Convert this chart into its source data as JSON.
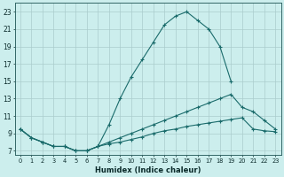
{
  "xlabel": "Humidex (Indice chaleur)",
  "bg_color": "#cceeed",
  "grid_color": "#aacccc",
  "line_color": "#1a6b6b",
  "xlim": [
    -0.5,
    23.5
  ],
  "ylim": [
    6.5,
    24.0
  ],
  "xticks": [
    0,
    1,
    2,
    3,
    4,
    5,
    6,
    7,
    8,
    9,
    10,
    11,
    12,
    13,
    14,
    15,
    16,
    17,
    18,
    19,
    20,
    21,
    22,
    23
  ],
  "yticks": [
    7,
    9,
    11,
    13,
    15,
    17,
    19,
    21,
    23
  ],
  "line1_x": [
    0,
    1,
    2,
    3,
    4,
    5,
    6,
    7,
    8,
    9,
    10,
    11,
    12,
    13,
    14,
    15,
    16,
    17,
    18,
    19
  ],
  "line1_y": [
    9.5,
    8.5,
    8.0,
    7.5,
    7.5,
    7.0,
    7.0,
    7.5,
    10.0,
    13.0,
    15.5,
    17.5,
    19.5,
    21.5,
    22.5,
    23.0,
    22.0,
    21.0,
    19.0,
    15.0
  ],
  "line2_x": [
    0,
    1,
    2,
    3,
    4,
    5,
    6,
    7,
    8,
    9,
    10,
    11,
    12,
    13,
    14,
    15,
    16,
    17,
    18,
    19,
    20,
    21,
    22,
    23
  ],
  "line2_y": [
    9.5,
    8.5,
    8.0,
    7.5,
    7.5,
    7.0,
    7.0,
    7.5,
    8.0,
    8.5,
    9.0,
    9.5,
    10.0,
    10.5,
    11.0,
    11.5,
    12.0,
    12.5,
    13.0,
    13.5,
    12.0,
    11.5,
    10.5,
    9.5
  ],
  "line3_x": [
    0,
    1,
    2,
    3,
    4,
    5,
    6,
    7,
    8,
    9,
    10,
    11,
    12,
    13,
    14,
    15,
    16,
    17,
    18,
    19,
    20,
    21,
    22,
    23
  ],
  "line3_y": [
    9.5,
    8.5,
    8.0,
    7.5,
    7.5,
    7.0,
    7.0,
    7.5,
    7.8,
    8.0,
    8.3,
    8.6,
    9.0,
    9.3,
    9.5,
    9.8,
    10.0,
    10.2,
    10.4,
    10.6,
    10.8,
    9.5,
    9.3,
    9.2
  ]
}
